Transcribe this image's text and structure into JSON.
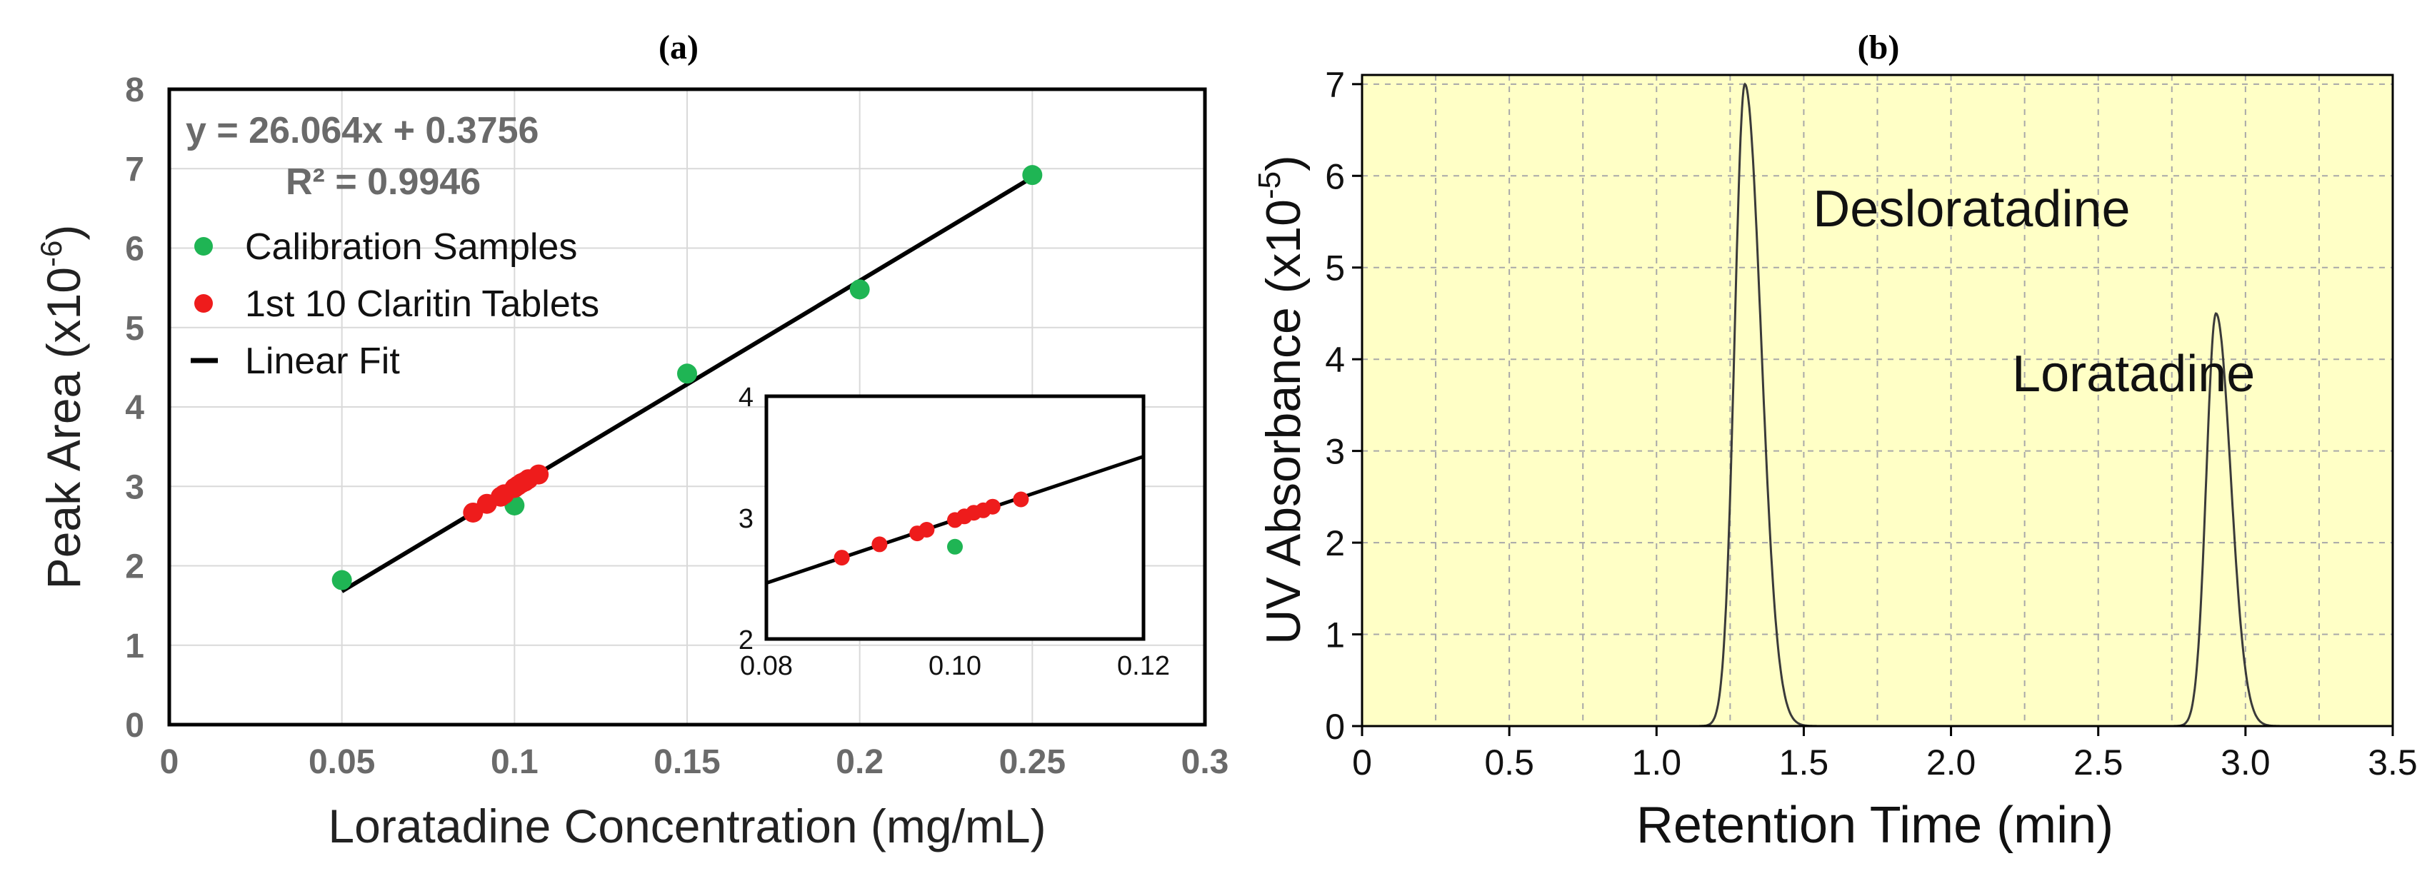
{
  "chart_data": [
    {
      "panel_label": "(a)",
      "type": "scatter",
      "xlabel": "Loratadine Concentration (mg/mL)",
      "ylabel_main": "Peak Area (x10",
      "ylabel_exp": "-6",
      "ylabel_close": ")",
      "xlim": [
        0,
        0.3
      ],
      "ylim": [
        0,
        8
      ],
      "x_ticks": [
        "0",
        "0.05",
        "0.1",
        "0.15",
        "0.2",
        "0.25",
        "0.3"
      ],
      "y_ticks": [
        "0",
        "1",
        "2",
        "3",
        "4",
        "5",
        "6",
        "7",
        "8"
      ],
      "grid": true,
      "equation": "y = 26.064x + 0.3756",
      "r_squared": "R² = 0.9946",
      "legend_position": "top-left",
      "legend": [
        {
          "label": "Calibration Samples",
          "color": "#1fb554",
          "kind": "marker"
        },
        {
          "label": "1st 10 Claritin Tablets",
          "color": "#ee1c1c",
          "kind": "marker"
        },
        {
          "label": "Linear Fit",
          "color": "#000000",
          "kind": "line"
        }
      ],
      "fit": {
        "slope": 26.064,
        "intercept": 0.3756,
        "x_range": [
          0.05,
          0.25
        ]
      },
      "series": [
        {
          "name": "Calibration Samples",
          "color": "#1fb554",
          "x": [
            0.05,
            0.1,
            0.15,
            0.2,
            0.25
          ],
          "y": [
            1.82,
            2.76,
            4.42,
            5.48,
            6.92
          ]
        },
        {
          "name": "1st 10 Claritin Tablets",
          "color": "#ee1c1c",
          "x": [
            0.088,
            0.092,
            0.096,
            0.097,
            0.1,
            0.101,
            0.102,
            0.103,
            0.104,
            0.107
          ],
          "y": [
            2.67,
            2.78,
            2.87,
            2.9,
            2.98,
            3.01,
            3.04,
            3.06,
            3.09,
            3.15
          ]
        }
      ],
      "inset": {
        "xlim": [
          0.08,
          0.12
        ],
        "ylim": [
          2,
          4
        ],
        "x_ticks": [
          "0.08",
          "0.10",
          "0.12"
        ],
        "y_ticks": [
          "2",
          "3",
          "4"
        ]
      }
    },
    {
      "panel_label": "(b)",
      "type": "line",
      "xlabel": "Retention Time (min)",
      "ylabel_main": "UV Absorbance (x10",
      "ylabel_exp": "-5",
      "ylabel_close": ")",
      "xlim": [
        0,
        3.5
      ],
      "ylim": [
        0,
        7.1
      ],
      "x_ticks": [
        "0",
        "0.5",
        "1.0",
        "1.5",
        "2.0",
        "2.5",
        "3.0",
        "3.5"
      ],
      "y_ticks": [
        "0",
        "1",
        "2",
        "3",
        "4",
        "5",
        "6",
        "7"
      ],
      "grid": true,
      "background": "#ffffc6",
      "line_color": "#3a3a3a",
      "peaks": [
        {
          "name": "Desloratadine",
          "x": 1.3,
          "height": 7.0,
          "sigma_left": 0.035,
          "sigma_right": 0.055
        },
        {
          "name": "Loratadine",
          "x": 2.9,
          "height": 4.5,
          "sigma_left": 0.033,
          "sigma_right": 0.05
        }
      ],
      "annotations": [
        {
          "text": "Desloratadine",
          "x": 2.07,
          "y": 5.45
        },
        {
          "text": "Loratadine",
          "x": 2.62,
          "y": 3.65
        }
      ]
    }
  ]
}
